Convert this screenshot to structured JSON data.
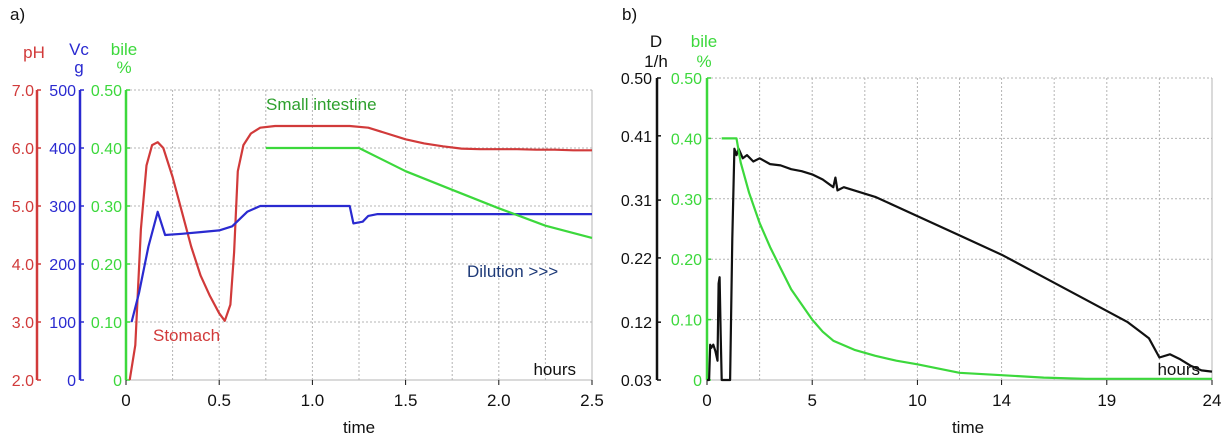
{
  "colors": {
    "red": "#d13a3a",
    "blue": "#2a2ad0",
    "green": "#3cd83c",
    "black": "#111111",
    "navy": "#1e3a78",
    "grid": "#b4b4b4",
    "annot_green": "#2ea02e"
  },
  "chart_data": [
    {
      "type": "line",
      "panel_label": "a)",
      "xlabel": "time",
      "x_unit_label": "hours",
      "xlim": [
        0,
        2.5
      ],
      "x_ticks": [
        "0",
        "0.5",
        "1.0",
        "1.5",
        "2.0",
        "2.5"
      ],
      "x_tick_values": [
        0,
        0.5,
        1.0,
        1.5,
        2.0,
        2.5
      ],
      "grid": true,
      "axes": [
        {
          "id": "pH",
          "title": "pH",
          "unit": "",
          "color": "red",
          "ylim": [
            2.0,
            7.0
          ],
          "tick_values": [
            2,
            3,
            4,
            5,
            6,
            7
          ],
          "ticks": [
            "2.0",
            "3.0",
            "4.0",
            "5.0",
            "6.0",
            "7.0"
          ]
        },
        {
          "id": "Vc",
          "title": "Vc",
          "unit": "g",
          "color": "blue",
          "ylim": [
            0,
            500
          ],
          "tick_values": [
            0,
            100,
            200,
            300,
            400,
            500
          ],
          "ticks": [
            "0",
            "100",
            "200",
            "300",
            "400",
            "500"
          ]
        },
        {
          "id": "bile",
          "title": "bile",
          "unit": "%",
          "color": "green",
          "ylim": [
            0,
            0.5
          ],
          "tick_values": [
            0,
            0.1,
            0.2,
            0.3,
            0.4,
            0.5
          ],
          "ticks": [
            "0",
            "0.10",
            "0.20",
            "0.30",
            "0.40",
            "0.50"
          ]
        }
      ],
      "series": [
        {
          "axis": "pH",
          "color": "red",
          "points": [
            [
              0.02,
              2.0
            ],
            [
              0.05,
              2.6
            ],
            [
              0.08,
              4.6
            ],
            [
              0.11,
              5.7
            ],
            [
              0.14,
              6.05
            ],
            [
              0.17,
              6.1
            ],
            [
              0.2,
              6.0
            ],
            [
              0.25,
              5.5
            ],
            [
              0.3,
              4.9
            ],
            [
              0.35,
              4.3
            ],
            [
              0.4,
              3.8
            ],
            [
              0.45,
              3.45
            ],
            [
              0.5,
              3.15
            ],
            [
              0.53,
              3.02
            ],
            [
              0.56,
              3.3
            ],
            [
              0.58,
              4.2
            ],
            [
              0.6,
              5.6
            ],
            [
              0.63,
              6.05
            ],
            [
              0.67,
              6.25
            ],
            [
              0.72,
              6.35
            ],
            [
              0.8,
              6.38
            ],
            [
              1.0,
              6.38
            ],
            [
              1.2,
              6.38
            ],
            [
              1.3,
              6.35
            ],
            [
              1.4,
              6.25
            ],
            [
              1.5,
              6.15
            ],
            [
              1.6,
              6.08
            ],
            [
              1.7,
              6.03
            ],
            [
              1.8,
              5.99
            ],
            [
              1.9,
              5.98
            ],
            [
              2.0,
              5.98
            ],
            [
              2.1,
              5.98
            ],
            [
              2.2,
              5.97
            ],
            [
              2.3,
              5.97
            ],
            [
              2.4,
              5.96
            ],
            [
              2.5,
              5.96
            ]
          ]
        },
        {
          "axis": "Vc",
          "color": "blue",
          "points": [
            [
              0.03,
              100
            ],
            [
              0.07,
              150
            ],
            [
              0.12,
              230
            ],
            [
              0.17,
              290
            ],
            [
              0.21,
              250
            ],
            [
              0.3,
              252
            ],
            [
              0.4,
              255
            ],
            [
              0.5,
              258
            ],
            [
              0.57,
              265
            ],
            [
              0.65,
              290
            ],
            [
              0.72,
              300
            ],
            [
              1.0,
              300
            ],
            [
              1.2,
              300
            ],
            [
              1.22,
              270
            ],
            [
              1.27,
              273
            ],
            [
              1.3,
              283
            ],
            [
              1.35,
              286
            ],
            [
              2.0,
              286
            ],
            [
              2.5,
              286
            ]
          ]
        },
        {
          "axis": "bile",
          "color": "green",
          "points": [
            [
              0.75,
              0.4
            ],
            [
              1.0,
              0.4
            ],
            [
              1.25,
              0.4
            ],
            [
              1.5,
              0.36
            ],
            [
              1.75,
              0.328
            ],
            [
              2.0,
              0.296
            ],
            [
              2.25,
              0.266
            ],
            [
              2.5,
              0.245
            ]
          ]
        }
      ],
      "annotations": [
        {
          "text": "Small intestine",
          "color": "annot_green"
        },
        {
          "text": "Stomach",
          "color": "red"
        },
        {
          "text": "Dilution >>>",
          "color": "navy"
        }
      ]
    },
    {
      "type": "line",
      "panel_label": "b)",
      "xlabel": "time",
      "x_unit_label": "hours",
      "xlim": [
        0,
        24
      ],
      "x_ticks": [
        "0",
        "5",
        "10",
        "14",
        "19",
        "24"
      ],
      "x_tick_values": [
        0,
        5,
        10,
        14,
        19,
        24
      ],
      "grid": true,
      "axes": [
        {
          "id": "D",
          "title": "D",
          "unit": "1/h",
          "color": "black",
          "ylim": [
            0.03,
            0.5
          ],
          "tick_values": [
            0.03,
            0.12,
            0.22,
            0.31,
            0.41,
            0.5
          ],
          "ticks": [
            "0.03",
            "0.12",
            "0.22",
            "0.31",
            "0.41",
            "0.50"
          ]
        },
        {
          "id": "bile",
          "title": "bile",
          "unit": "%",
          "color": "green",
          "ylim": [
            0,
            0.5
          ],
          "tick_values": [
            0,
            0.1,
            0.2,
            0.3,
            0.4,
            0.5
          ],
          "ticks": [
            "0",
            "0.10",
            "0.20",
            "0.30",
            "0.40",
            "0.50"
          ]
        }
      ],
      "series": [
        {
          "axis": "D",
          "color": "black",
          "points": [
            [
              0.0,
              0.03
            ],
            [
              0.1,
              0.03
            ],
            [
              0.15,
              0.085
            ],
            [
              0.2,
              0.08
            ],
            [
              0.3,
              0.085
            ],
            [
              0.4,
              0.075
            ],
            [
              0.5,
              0.06
            ],
            [
              0.55,
              0.18
            ],
            [
              0.6,
              0.19
            ],
            [
              0.65,
              0.1
            ],
            [
              0.7,
              0.03
            ],
            [
              1.0,
              0.03
            ],
            [
              1.1,
              0.03
            ],
            [
              1.2,
              0.25
            ],
            [
              1.3,
              0.39
            ],
            [
              1.4,
              0.38
            ],
            [
              1.5,
              0.39
            ],
            [
              1.7,
              0.375
            ],
            [
              1.9,
              0.38
            ],
            [
              2.2,
              0.37
            ],
            [
              2.5,
              0.375
            ],
            [
              3.0,
              0.366
            ],
            [
              3.5,
              0.364
            ],
            [
              4.0,
              0.358
            ],
            [
              4.5,
              0.355
            ],
            [
              5.0,
              0.35
            ],
            [
              5.5,
              0.342
            ],
            [
              6.0,
              0.33
            ],
            [
              6.1,
              0.345
            ],
            [
              6.2,
              0.325
            ],
            [
              6.5,
              0.33
            ],
            [
              7.0,
              0.325
            ],
            [
              8.0,
              0.315
            ],
            [
              9.0,
              0.3
            ],
            [
              10.0,
              0.285
            ],
            [
              12.0,
              0.255
            ],
            [
              14.0,
              0.225
            ],
            [
              16.0,
              0.19
            ],
            [
              18.0,
              0.155
            ],
            [
              20.0,
              0.12
            ],
            [
              21.0,
              0.095
            ],
            [
              21.5,
              0.065
            ],
            [
              22.0,
              0.07
            ],
            [
              22.5,
              0.062
            ],
            [
              23.0,
              0.052
            ],
            [
              23.5,
              0.045
            ],
            [
              24.0,
              0.043
            ]
          ]
        },
        {
          "axis": "bile",
          "color": "green",
          "points": [
            [
              0.7,
              0.4
            ],
            [
              1.4,
              0.4
            ],
            [
              1.6,
              0.36
            ],
            [
              2.0,
              0.31
            ],
            [
              2.5,
              0.26
            ],
            [
              3.0,
              0.22
            ],
            [
              3.5,
              0.185
            ],
            [
              4.0,
              0.15
            ],
            [
              4.5,
              0.125
            ],
            [
              5.0,
              0.1
            ],
            [
              5.5,
              0.08
            ],
            [
              6.0,
              0.065
            ],
            [
              7.0,
              0.05
            ],
            [
              8.0,
              0.04
            ],
            [
              9.0,
              0.032
            ],
            [
              10.0,
              0.026
            ],
            [
              12.0,
              0.012
            ],
            [
              14.0,
              0.008
            ],
            [
              16.0,
              0.004
            ],
            [
              18.0,
              0.002
            ],
            [
              20.0,
              0.002
            ],
            [
              24.0,
              0.002
            ]
          ]
        }
      ],
      "annotations": []
    }
  ]
}
